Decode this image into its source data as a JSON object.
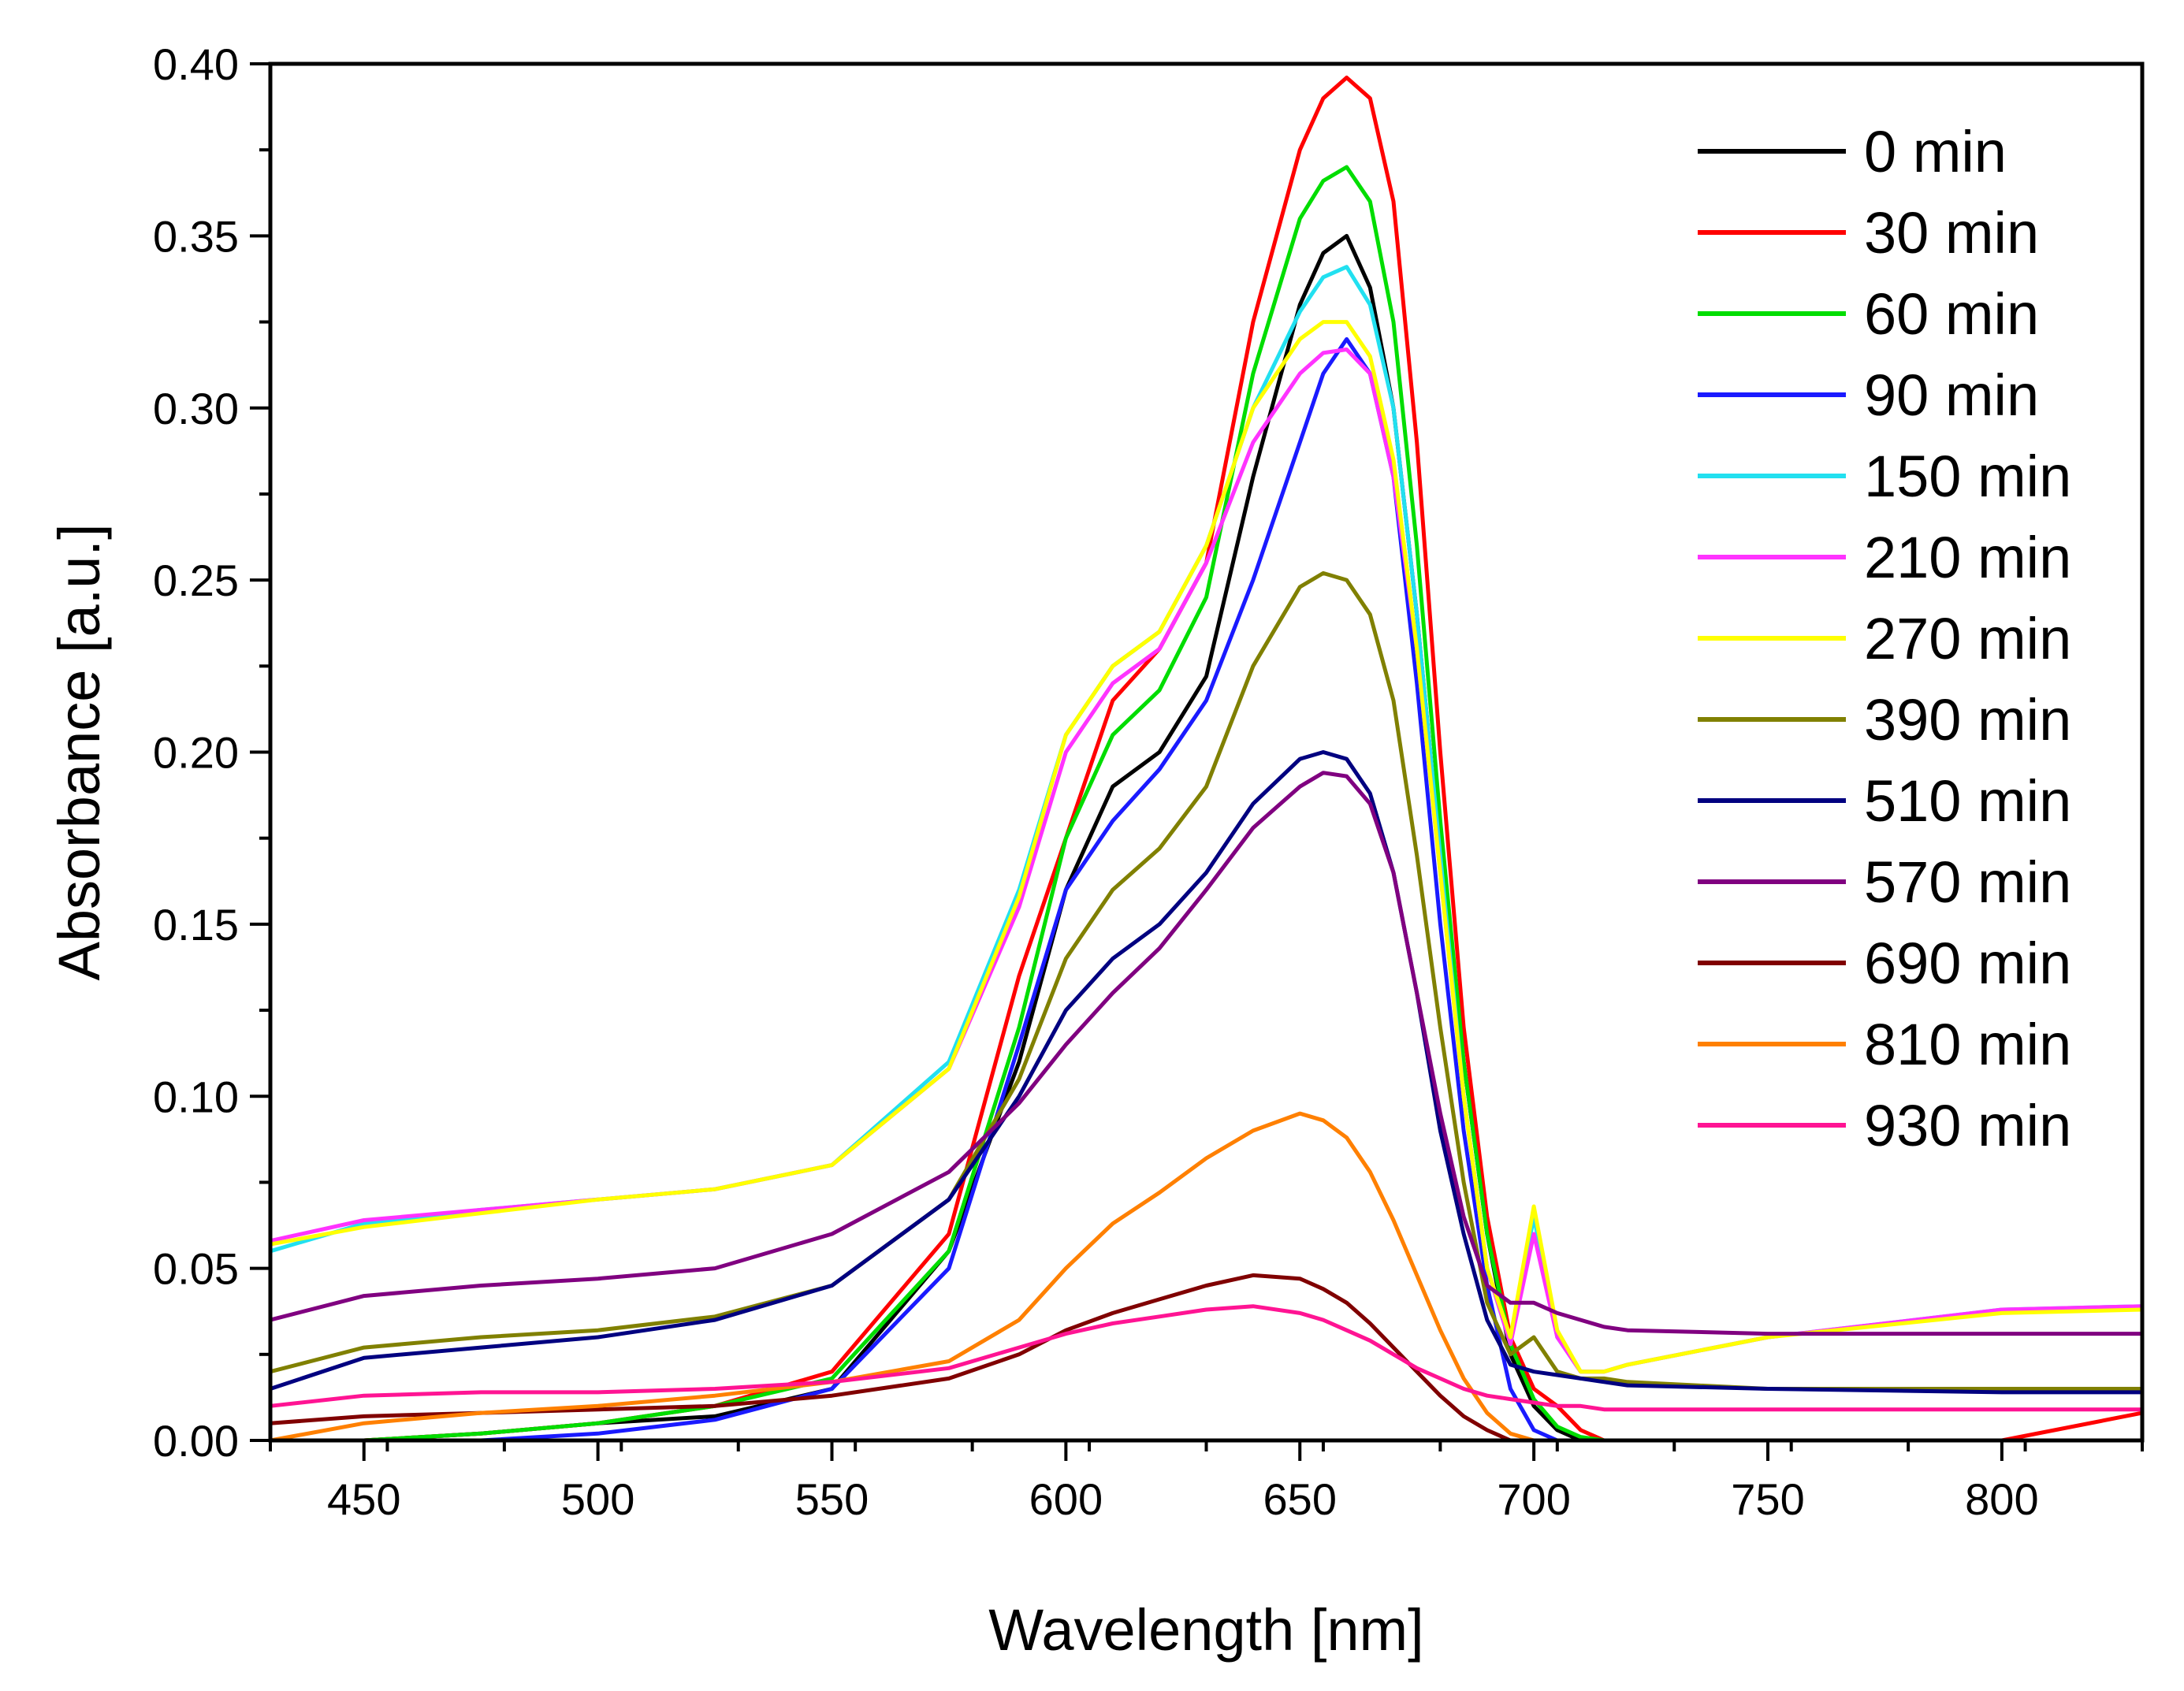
{
  "chart_data": {
    "type": "line",
    "title": "",
    "xlabel": "Wavelength [nm]",
    "ylabel": "Absorbance [a.u.]",
    "xlim": [
      430,
      830
    ],
    "ylim": [
      0,
      0.4
    ],
    "x_ticks": [
      450,
      500,
      550,
      600,
      650,
      700,
      750,
      800
    ],
    "y_ticks": [
      0.0,
      0.05,
      0.1,
      0.15,
      0.2,
      0.25,
      0.3,
      0.35,
      0.4
    ],
    "y_tick_labels": [
      "0.00",
      "0.05",
      "0.10",
      "0.15",
      "0.20",
      "0.25",
      "0.30",
      "0.35",
      "0.40"
    ],
    "legend_position": "top-right",
    "x": [
      430,
      450,
      475,
      500,
      525,
      550,
      575,
      590,
      600,
      610,
      620,
      630,
      640,
      650,
      655,
      660,
      665,
      670,
      675,
      680,
      685,
      690,
      695,
      700,
      705,
      710,
      715,
      720,
      750,
      800,
      830
    ],
    "series": [
      {
        "name": "0 min",
        "color": "#000000",
        "values": [
          0.0,
          0.0,
          0.002,
          0.005,
          0.007,
          0.015,
          0.055,
          0.11,
          0.16,
          0.19,
          0.2,
          0.222,
          0.28,
          0.33,
          0.345,
          0.35,
          0.335,
          0.3,
          0.24,
          0.17,
          0.11,
          0.06,
          0.025,
          0.01,
          0.003,
          0.0,
          0.0,
          0.0,
          0.0,
          0.0,
          0.0
        ]
      },
      {
        "name": "30 min",
        "color": "#ff0000",
        "values": [
          0.0,
          0.0,
          0.002,
          0.005,
          0.01,
          0.02,
          0.06,
          0.135,
          0.175,
          0.215,
          0.23,
          0.255,
          0.325,
          0.375,
          0.39,
          0.396,
          0.39,
          0.36,
          0.29,
          0.2,
          0.12,
          0.065,
          0.03,
          0.015,
          0.01,
          0.003,
          0.0,
          0.0,
          0.0,
          0.0,
          0.008
        ]
      },
      {
        "name": "60 min",
        "color": "#00dd00",
        "values": [
          0.0,
          0.0,
          0.002,
          0.005,
          0.01,
          0.018,
          0.055,
          0.12,
          0.175,
          0.205,
          0.218,
          0.245,
          0.31,
          0.355,
          0.366,
          0.37,
          0.36,
          0.325,
          0.26,
          0.18,
          0.11,
          0.06,
          0.028,
          0.012,
          0.004,
          0.001,
          0.0,
          0.0,
          0.0,
          0.0,
          0.0
        ]
      },
      {
        "name": "90 min",
        "color": "#1a1aff",
        "values": [
          0.0,
          0.0,
          0.0,
          0.002,
          0.006,
          0.015,
          0.05,
          0.115,
          0.16,
          0.18,
          0.195,
          0.215,
          0.25,
          0.29,
          0.31,
          0.32,
          0.31,
          0.28,
          0.22,
          0.15,
          0.09,
          0.045,
          0.015,
          0.003,
          0.0,
          0.0,
          0.0,
          0.0,
          0.0,
          0.0,
          0.0
        ]
      },
      {
        "name": "150 min",
        "color": "#22e0f0",
        "values": [
          0.055,
          0.063,
          0.067,
          0.07,
          0.073,
          0.08,
          0.11,
          0.16,
          0.205,
          0.225,
          0.235,
          0.26,
          0.3,
          0.328,
          0.338,
          0.341,
          0.33,
          0.3,
          0.24,
          0.17,
          0.1,
          0.05,
          0.028,
          0.065,
          0.03,
          0.02,
          0.02,
          0.022,
          0.03,
          0.038,
          0.039
        ]
      },
      {
        "name": "210 min",
        "color": "#ff33ff",
        "values": [
          0.058,
          0.064,
          0.067,
          0.07,
          0.073,
          0.08,
          0.108,
          0.155,
          0.2,
          0.22,
          0.23,
          0.255,
          0.29,
          0.31,
          0.316,
          0.317,
          0.31,
          0.28,
          0.23,
          0.165,
          0.1,
          0.05,
          0.028,
          0.06,
          0.03,
          0.02,
          0.02,
          0.022,
          0.03,
          0.038,
          0.039
        ]
      },
      {
        "name": "270 min",
        "color": "#ffff00",
        "values": [
          0.057,
          0.062,
          0.066,
          0.07,
          0.073,
          0.08,
          0.108,
          0.158,
          0.205,
          0.225,
          0.235,
          0.26,
          0.3,
          0.32,
          0.325,
          0.325,
          0.315,
          0.285,
          0.23,
          0.165,
          0.1,
          0.05,
          0.03,
          0.068,
          0.032,
          0.02,
          0.02,
          0.022,
          0.03,
          0.037,
          0.038
        ]
      },
      {
        "name": "390 min",
        "color": "#808000",
        "values": [
          0.02,
          0.027,
          0.03,
          0.032,
          0.036,
          0.045,
          0.07,
          0.105,
          0.14,
          0.16,
          0.172,
          0.19,
          0.225,
          0.248,
          0.252,
          0.25,
          0.24,
          0.215,
          0.17,
          0.12,
          0.075,
          0.04,
          0.025,
          0.03,
          0.02,
          0.018,
          0.018,
          0.017,
          0.015,
          0.015,
          0.015
        ]
      },
      {
        "name": "510 min",
        "color": "#000080",
        "values": [
          0.015,
          0.024,
          0.027,
          0.03,
          0.035,
          0.045,
          0.07,
          0.1,
          0.125,
          0.14,
          0.15,
          0.165,
          0.185,
          0.198,
          0.2,
          0.198,
          0.188,
          0.165,
          0.13,
          0.09,
          0.06,
          0.035,
          0.022,
          0.02,
          0.019,
          0.018,
          0.017,
          0.016,
          0.015,
          0.014,
          0.014
        ]
      },
      {
        "name": "570 min",
        "color": "#800080",
        "values": [
          0.035,
          0.042,
          0.045,
          0.047,
          0.05,
          0.06,
          0.078,
          0.098,
          0.115,
          0.13,
          0.143,
          0.16,
          0.178,
          0.19,
          0.194,
          0.193,
          0.185,
          0.165,
          0.13,
          0.095,
          0.065,
          0.045,
          0.04,
          0.04,
          0.037,
          0.035,
          0.033,
          0.032,
          0.031,
          0.031,
          0.031
        ]
      },
      {
        "name": "690 min",
        "color": "#800000",
        "values": [
          0.005,
          0.007,
          0.008,
          0.009,
          0.01,
          0.013,
          0.018,
          0.025,
          0.032,
          0.037,
          0.041,
          0.045,
          0.048,
          0.047,
          0.044,
          0.04,
          0.034,
          0.027,
          0.02,
          0.013,
          0.007,
          0.003,
          0.0,
          0.0,
          0.0,
          0.0,
          0.0,
          0.0,
          0.0,
          0.0,
          0.0
        ]
      },
      {
        "name": "810 min",
        "color": "#ff8000",
        "values": [
          0.0,
          0.005,
          0.008,
          0.01,
          0.013,
          0.017,
          0.023,
          0.035,
          0.05,
          0.063,
          0.072,
          0.082,
          0.09,
          0.095,
          0.093,
          0.088,
          0.078,
          0.064,
          0.048,
          0.032,
          0.018,
          0.008,
          0.002,
          0.0,
          0.0,
          0.0,
          0.0,
          0.0,
          0.0,
          0.0,
          0.0
        ]
      },
      {
        "name": "930 min",
        "color": "#ff1493",
        "values": [
          0.01,
          0.013,
          0.014,
          0.014,
          0.015,
          0.017,
          0.021,
          0.027,
          0.031,
          0.034,
          0.036,
          0.038,
          0.039,
          0.037,
          0.035,
          0.032,
          0.029,
          0.025,
          0.021,
          0.018,
          0.015,
          0.013,
          0.012,
          0.011,
          0.01,
          0.01,
          0.009,
          0.009,
          0.009,
          0.009,
          0.009
        ]
      }
    ]
  }
}
